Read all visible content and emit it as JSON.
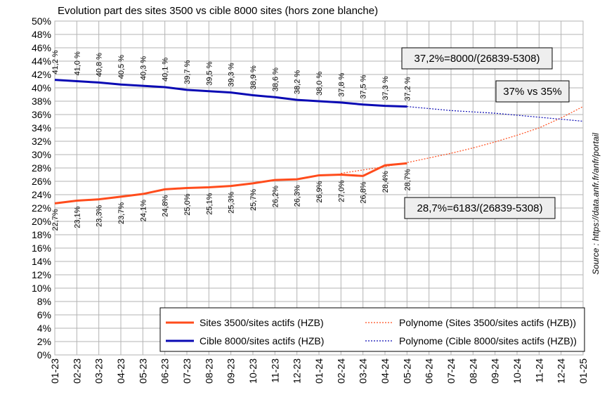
{
  "chart_data": {
    "type": "line",
    "title": "Evolution part des sites 3500 vs cible 8000 sites (hors zone blanche)",
    "categories": [
      "01-23",
      "02-23",
      "03-23",
      "04-23",
      "05-23",
      "06-23",
      "07-23",
      "08-23",
      "09-23",
      "10-23",
      "11-23",
      "12-23",
      "01-24",
      "02-24",
      "03-24",
      "04-24",
      "05-24",
      "06-24",
      "07-24",
      "08-24",
      "09-24",
      "10-24",
      "11-24",
      "12-24",
      "01-25"
    ],
    "series": [
      {
        "name": "Sites 3500/sites actifs (HZB)",
        "color": "#ff4c1c",
        "style": "solid",
        "values": [
          22.7,
          23.1,
          23.3,
          23.7,
          24.1,
          24.8,
          25.0,
          25.1,
          25.3,
          25.7,
          26.2,
          26.3,
          26.9,
          27.0,
          26.8,
          28.4,
          28.7,
          null,
          null,
          null,
          null,
          null,
          null,
          null,
          null
        ],
        "value_labels": [
          "22,7%",
          "23,1%",
          "23,3%",
          "23,7%",
          "24,1%",
          "24,8%",
          "25,0%",
          "25,1%",
          "25,3%",
          "25,7%",
          "26,2%",
          "26,3%",
          "26,9%",
          "27,0%",
          "26,8%",
          "28,4%",
          "28,7%",
          null,
          null,
          null,
          null,
          null,
          null,
          null,
          null
        ]
      },
      {
        "name": "Polynome (Sites 3500/sites actifs (HZB))",
        "color": "#ff4c1c",
        "style": "dotted",
        "values": [
          null,
          null,
          null,
          null,
          null,
          null,
          null,
          null,
          null,
          null,
          null,
          null,
          null,
          27.2,
          27.7,
          28.2,
          28.8,
          29.5,
          30.2,
          31.0,
          31.9,
          32.9,
          34.0,
          35.5,
          37.2
        ]
      },
      {
        "name": "Cible 8000/sites actifs (HZB)",
        "color": "#0a0ab4",
        "style": "solid",
        "values": [
          41.2,
          41.0,
          40.8,
          40.5,
          40.3,
          40.1,
          39.7,
          39.5,
          39.3,
          38.9,
          38.6,
          38.2,
          38.0,
          37.8,
          37.5,
          37.3,
          37.2,
          null,
          null,
          null,
          null,
          null,
          null,
          null,
          null
        ],
        "value_labels": [
          "41,2 %",
          "41,0 %",
          "40,8 %",
          "40,5 %",
          "40,3 %",
          "40,1 %",
          "39,7 %",
          "39,5 %",
          "39,3 %",
          "38,9 %",
          "38,6 %",
          "38,2 %",
          "38,0 %",
          "37,8 %",
          "37,5 %",
          "37,3 %",
          "37,2 %",
          null,
          null,
          null,
          null,
          null,
          null,
          null,
          null
        ]
      },
      {
        "name": "Polynome (Cible 8000/sites actifs (HZB))",
        "color": "#0a0ab4",
        "style": "dotted",
        "values": [
          null,
          null,
          null,
          null,
          null,
          null,
          null,
          null,
          null,
          null,
          null,
          null,
          null,
          null,
          null,
          null,
          37.2,
          36.9,
          36.6,
          36.4,
          36.2,
          35.9,
          35.6,
          35.3,
          35.0
        ]
      }
    ],
    "ylim": [
      0,
      50
    ],
    "yticks": [
      {
        "value": 0,
        "label": "0%"
      },
      {
        "value": 2,
        "label": "2%"
      },
      {
        "value": 4,
        "label": "4%"
      },
      {
        "value": 6,
        "label": "6%"
      },
      {
        "value": 8,
        "label": "8%"
      },
      {
        "value": 10,
        "label": "10%"
      },
      {
        "value": 12,
        "label": "12%"
      },
      {
        "value": 14,
        "label": "14%"
      },
      {
        "value": 16,
        "label": "16%"
      },
      {
        "value": 18,
        "label": "18%"
      },
      {
        "value": 20,
        "label": "20%"
      },
      {
        "value": 22,
        "label": "22%"
      },
      {
        "value": 24,
        "label": "24%"
      },
      {
        "value": 26,
        "label": "26%"
      },
      {
        "value": 28,
        "label": "28%"
      },
      {
        "value": 30,
        "label": "30%"
      },
      {
        "value": 32,
        "label": "32%"
      },
      {
        "value": 34,
        "label": "34%"
      },
      {
        "value": 36,
        "label": "36%"
      },
      {
        "value": 38,
        "label": "38%"
      },
      {
        "value": 40,
        "label": "40%"
      },
      {
        "value": 42,
        "label": "42%"
      },
      {
        "value": 44,
        "label": "44%"
      },
      {
        "value": 46,
        "label": "46%"
      },
      {
        "value": 48,
        "label": "48%"
      },
      {
        "value": 50,
        "label": "50%"
      }
    ],
    "grid": true,
    "annotations": [
      "37,2%=8000/(26839-5308)",
      "37% vs 35%",
      "28,7%=6183/(26839-5308)"
    ],
    "source": "Source : https://data.anfr.fr/anfr/portail"
  }
}
